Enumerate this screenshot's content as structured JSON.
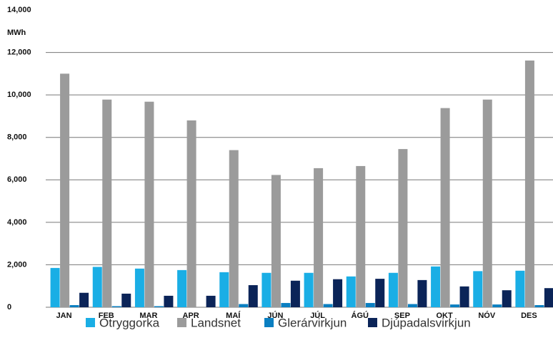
{
  "chart_data": {
    "type": "bar",
    "y_axis_label": "MWh",
    "categories": [
      "JAN",
      "FEB",
      "MAR",
      "APR",
      "MAÍ",
      "JÚN",
      "JÚL",
      "ÁGÚ",
      "SEP",
      "OKT",
      "NÓV",
      "DES"
    ],
    "series": [
      {
        "name": "Ótryggorka",
        "color": "#1aaee5",
        "values": [
          1850,
          1900,
          1820,
          1750,
          1650,
          1620,
          1620,
          1450,
          1620,
          1920,
          1700,
          1720
        ]
      },
      {
        "name": "Landsnet",
        "color": "#9b9b9b",
        "values": [
          11000,
          9780,
          9680,
          8800,
          7400,
          6230,
          6550,
          6650,
          7450,
          9380,
          9780,
          11620
        ]
      },
      {
        "name": "Glerárvirkjun",
        "color": "#0a7fc1",
        "values": [
          100,
          50,
          50,
          0,
          150,
          200,
          150,
          200,
          150,
          130,
          130,
          100
        ]
      },
      {
        "name": "Djúpadalsvirkjun",
        "color": "#0b2458",
        "values": [
          680,
          640,
          540,
          540,
          1040,
          1250,
          1320,
          1340,
          1280,
          980,
          800,
          900
        ]
      }
    ],
    "ylim": [
      0,
      14000
    ],
    "yticks": [
      0,
      {
        "value": 2000,
        "label": "2,000"
      },
      {
        "value": 4000,
        "label": "4,000"
      },
      {
        "value": 6000,
        "label": "6,000"
      },
      {
        "value": 8000,
        "label": "8,000"
      },
      {
        "value": 10000,
        "label": "10,000"
      },
      {
        "value": 12000,
        "label": "12,000"
      },
      {
        "value": 14000,
        "label": "14,000"
      }
    ],
    "grid": true,
    "legend": "bottom"
  }
}
